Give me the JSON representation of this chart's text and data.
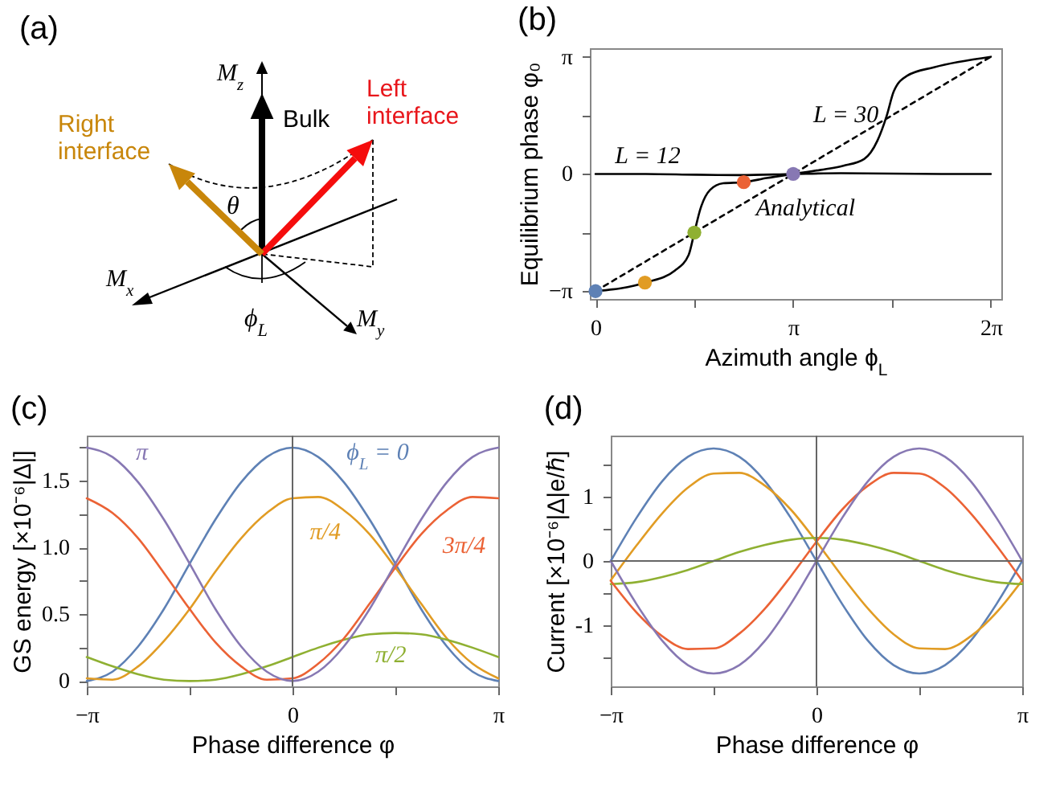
{
  "chart_data": [
    {
      "type": "other",
      "title": "(a)",
      "annotations": [
        "M$_{z}$",
        "Bulk",
        "Left interface",
        "Right interface",
        "θ",
        "M$_{x}$",
        "M$_{y}$",
        "ϕ$_{L}$"
      ]
    },
    {
      "type": "line",
      "title": "(b)",
      "xlabel": "Azimuth angle ϕ$_{L}$",
      "ylabel": "Equilibrium phase φ₀",
      "xlim": [
        -0.09,
        6.45
      ],
      "ylim": [
        -3.35,
        3.37
      ],
      "xticks": [
        {
          "value": 0,
          "label": "0"
        },
        {
          "value": 1.5708,
          "label": null
        },
        {
          "value": 3.1416,
          "label": "π"
        },
        {
          "value": 4.7124,
          "label": null
        },
        {
          "value": 6.2832,
          "label": "2π"
        }
      ],
      "yticks": [
        {
          "value": -3.1416,
          "label": "−π"
        },
        {
          "value": -1.5708,
          "label": null
        },
        {
          "value": 0,
          "label": "0"
        },
        {
          "value": 1.5708,
          "label": null
        },
        {
          "value": 3.1416,
          "label": "π"
        }
      ],
      "series": [
        {
          "name": "L = 12",
          "color": "#000000",
          "x": [
            0,
            0.8,
            1.6,
            2.3,
            3.1416,
            3.9,
            4.7,
            5.5,
            6.2832
          ],
          "values": [
            0,
            0,
            -0.02,
            -0.03,
            0,
            0.02,
            0.01,
            0,
            0
          ]
        },
        {
          "name": "L = 30",
          "color": "#000000",
          "x": [
            0,
            0.8,
            1.26,
            1.48,
            1.5708,
            1.67,
            1.82,
            2.03,
            2.3562,
            2.72,
            3.1416,
            3.58,
            3.94,
            4.27,
            4.48,
            4.63,
            4.74,
            4.95,
            5.38,
            6.2832
          ],
          "values": [
            -3.14,
            -2.91,
            -2.59,
            -2.17,
            -1.57,
            -0.92,
            -0.43,
            -0.25,
            -0.22,
            -0.11,
            0,
            0.11,
            0.22,
            0.4,
            0.89,
            1.57,
            2.21,
            2.63,
            2.86,
            3.14
          ]
        },
        {
          "name": "Analytical",
          "color": "#000000",
          "line_style": "dashed",
          "x": [
            0,
            6.2832
          ],
          "values": [
            -3.14,
            3.14
          ]
        },
        {
          "type": "scatter",
          "marker": "circle",
          "colors": [
            "#5e81b5",
            "#e19c24",
            "#8fb032",
            "#eb6235",
            "#8778b3"
          ],
          "x": [
            0,
            0.7854,
            1.5708,
            2.3562,
            3.1416
          ],
          "values": [
            -3.14,
            -2.91,
            -1.57,
            -0.22,
            0
          ]
        }
      ]
    },
    {
      "type": "line",
      "title": "(c)",
      "xlabel": "Phase difference φ",
      "ylabel": "GS energy [×10⁻⁶|Δ|]",
      "xlim": [
        -3.1416,
        3.1416
      ],
      "ylim": [
        -0.04,
        1.84
      ],
      "xticks": [
        {
          "value": -3.1416,
          "label": "−π"
        },
        {
          "value": -1.5708,
          "label": null
        },
        0,
        {
          "value": 1.5708,
          "label": null
        },
        {
          "value": 3.1416,
          "label": "π"
        }
      ],
      "yticks": [
        0,
        {
          "value": 0.25,
          "label": null
        },
        0.5,
        {
          "value": 0.75,
          "label": null
        },
        {
          "value": 1,
          "label": "1.0"
        },
        {
          "value": 1.25,
          "label": null
        },
        1.5,
        {
          "value": 1.75,
          "label": null
        }
      ],
      "ref_lines": [
        {
          "axis": "x",
          "value": 0
        }
      ],
      "x": [
        -3.1416,
        -2.7489,
        -2.3562,
        -1.9635,
        -1.5708,
        -1.1781,
        -0.7854,
        -0.3927,
        0,
        0.3927,
        0.7854,
        1.1781,
        1.5708,
        1.9635,
        2.3562,
        2.7489,
        3.1416
      ],
      "series": [
        {
          "name": "ϕ$_{L}$ = 0",
          "color": "#5e81b5",
          "values": [
            0,
            0.07,
            0.26,
            0.54,
            0.88,
            1.21,
            1.49,
            1.68,
            1.75,
            1.68,
            1.49,
            1.21,
            0.88,
            0.54,
            0.26,
            0.07,
            0
          ]
        },
        {
          "name": "π/4",
          "color": "#e19c24",
          "values": [
            0.02,
            0.01,
            0.11,
            0.3,
            0.54,
            0.82,
            1.07,
            1.26,
            1.37,
            1.38,
            1.28,
            1.1,
            0.85,
            0.58,
            0.32,
            0.13,
            0.02
          ]
        },
        {
          "name": "π/2",
          "color": "#8fb032",
          "values": [
            0.18,
            0.11,
            0.05,
            0.01,
            0,
            0.01,
            0.05,
            0.11,
            0.18,
            0.25,
            0.31,
            0.35,
            0.36,
            0.35,
            0.31,
            0.25,
            0.18
          ]
        },
        {
          "name": "3π/4",
          "color": "#eb6235",
          "values": [
            1.37,
            1.26,
            1.07,
            0.81,
            0.54,
            0.29,
            0.11,
            0.01,
            0.02,
            0.13,
            0.32,
            0.58,
            0.85,
            1.1,
            1.28,
            1.38,
            1.37
          ]
        },
        {
          "name": "π",
          "color": "#8778b3",
          "values": [
            1.75,
            1.68,
            1.49,
            1.21,
            0.88,
            0.54,
            0.26,
            0.07,
            0,
            0.07,
            0.26,
            0.54,
            0.88,
            1.21,
            1.49,
            1.68,
            1.75
          ]
        }
      ]
    },
    {
      "type": "line",
      "title": "(d)",
      "xlabel": "Phase difference φ",
      "ylabel": "Current [×10⁻⁶|Δ|e/ℏ]",
      "xlim": [
        -3.1416,
        3.1416
      ],
      "ylim": [
        -1.95,
        1.95
      ],
      "xticks": [
        {
          "value": -3.1416,
          "label": "−π"
        },
        {
          "value": -1.5708,
          "label": null
        },
        0,
        {
          "value": 1.5708,
          "label": null
        },
        {
          "value": 3.1416,
          "label": "π"
        }
      ],
      "yticks": [
        {
          "value": -1.5,
          "label": null
        },
        -1,
        {
          "value": -0.5,
          "label": null
        },
        0,
        {
          "value": 0.5,
          "label": null
        },
        1,
        {
          "value": 1.5,
          "label": null
        }
      ],
      "ref_lines": [
        {
          "axis": "x",
          "value": 0
        },
        {
          "axis": "y",
          "value": 0
        }
      ],
      "x": [
        -3.1416,
        -2.7489,
        -2.3562,
        -1.9635,
        -1.5708,
        -1.1781,
        -0.7854,
        -0.3927,
        0,
        0.3927,
        0.7854,
        1.1781,
        1.5708,
        1.9635,
        2.3562,
        2.7489,
        3.1416
      ],
      "series": [
        {
          "color": "#5e81b5",
          "values": [
            0,
            0.67,
            1.24,
            1.62,
            1.75,
            1.62,
            1.24,
            0.67,
            0,
            -0.67,
            -1.24,
            -1.62,
            -1.75,
            -1.62,
            -1.24,
            -0.67,
            0
          ]
        },
        {
          "color": "#e19c24",
          "values": [
            -0.3,
            0.24,
            0.74,
            1.14,
            1.36,
            1.37,
            1.17,
            0.8,
            0.3,
            -0.24,
            -0.74,
            -1.14,
            -1.36,
            -1.37,
            -1.17,
            -0.8,
            -0.3
          ]
        },
        {
          "color": "#8fb032",
          "values": [
            -0.36,
            -0.33,
            -0.25,
            -0.14,
            0,
            0.14,
            0.25,
            0.33,
            0.36,
            0.33,
            0.25,
            0.14,
            0,
            -0.14,
            -0.25,
            -0.33,
            -0.36
          ]
        },
        {
          "color": "#eb6235",
          "values": [
            -0.31,
            -0.8,
            -1.17,
            -1.37,
            -1.36,
            -1.13,
            -0.74,
            -0.24,
            0.3,
            0.8,
            1.17,
            1.37,
            1.36,
            1.14,
            0.74,
            0.24,
            -0.31
          ]
        },
        {
          "color": "#8778b3",
          "values": [
            0,
            -0.67,
            -1.24,
            -1.62,
            -1.75,
            -1.62,
            -1.24,
            -0.67,
            0,
            0.67,
            1.24,
            1.62,
            1.75,
            1.62,
            1.24,
            0.67,
            0
          ]
        }
      ]
    }
  ]
}
